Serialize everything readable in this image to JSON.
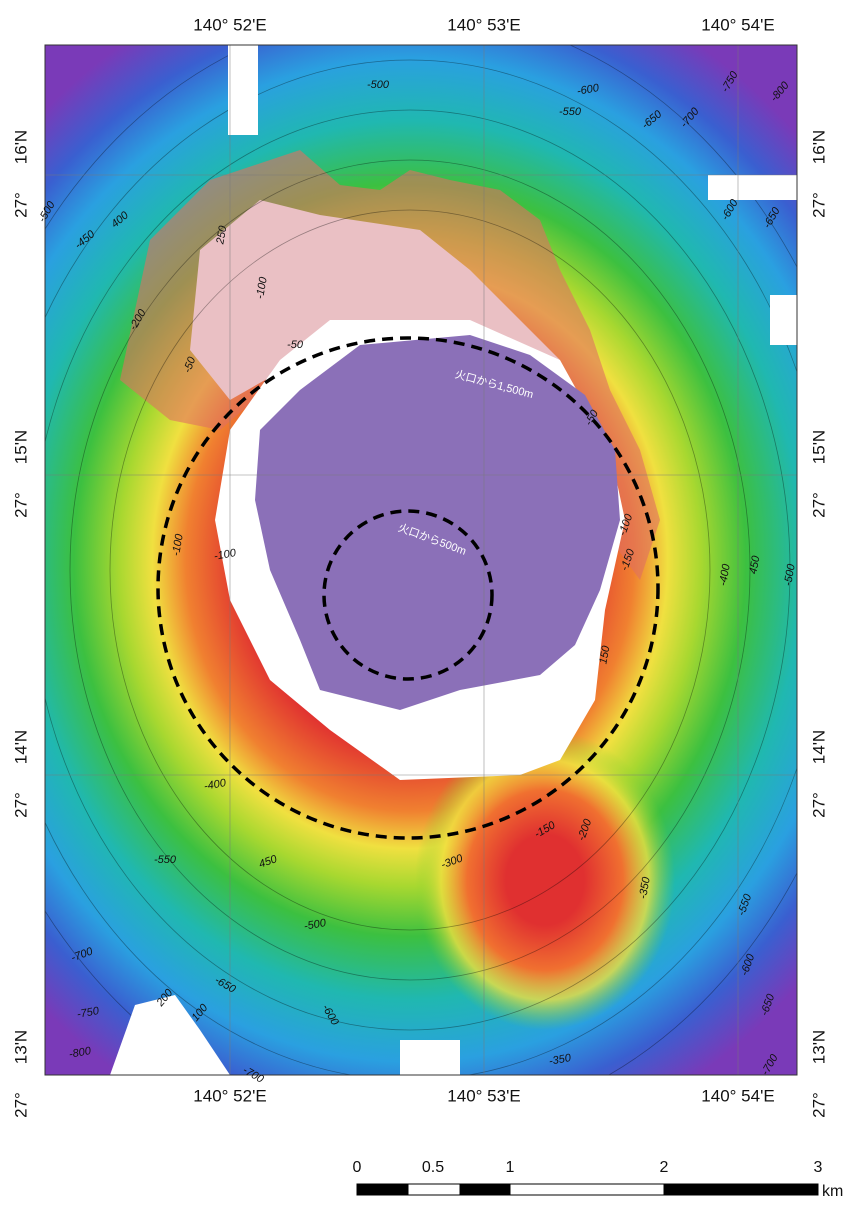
{
  "longitude_labels": [
    "140°  52'E",
    "140°  53'E",
    "140°  54'E"
  ],
  "latitude_labels": [
    {
      "deg": "27°",
      "min": "16'N"
    },
    {
      "deg": "27°",
      "min": "15'N"
    },
    {
      "deg": "27°",
      "min": "14'N"
    },
    {
      "deg": "27°",
      "min": "13'N"
    }
  ],
  "contour_labels": [
    "-500",
    "-600",
    "-550",
    "-650",
    "-700",
    "-750",
    "-800",
    "-500",
    "400",
    "-450",
    "250",
    "-100",
    "-200",
    "-50",
    "-50",
    "-600",
    "-650",
    "-50",
    "-100",
    "-150",
    "-100",
    "-100",
    "-400",
    "450",
    "-500",
    "150",
    "-400",
    "-150",
    "-200",
    "-300",
    "-550",
    "450",
    "-350",
    "-500",
    "-550",
    "-700",
    "-650",
    "-600",
    "200",
    "100",
    "-750",
    "-600",
    "-650",
    "-800",
    "-700",
    "-350",
    "-700"
  ],
  "circle_labels": [
    "火口から1,500m",
    "火口から500m"
  ],
  "scale_bar": {
    "labels": [
      0,
      0.5,
      1,
      2,
      3
    ],
    "unit": "km"
  }
}
